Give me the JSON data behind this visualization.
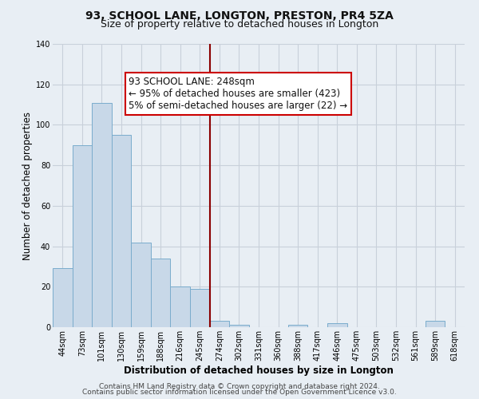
{
  "title": "93, SCHOOL LANE, LONGTON, PRESTON, PR4 5ZA",
  "subtitle": "Size of property relative to detached houses in Longton",
  "xlabel": "Distribution of detached houses by size in Longton",
  "ylabel": "Number of detached properties",
  "bin_labels": [
    "44sqm",
    "73sqm",
    "101sqm",
    "130sqm",
    "159sqm",
    "188sqm",
    "216sqm",
    "245sqm",
    "274sqm",
    "302sqm",
    "331sqm",
    "360sqm",
    "388sqm",
    "417sqm",
    "446sqm",
    "475sqm",
    "503sqm",
    "532sqm",
    "561sqm",
    "589sqm",
    "618sqm"
  ],
  "bar_heights": [
    29,
    90,
    111,
    95,
    42,
    34,
    20,
    19,
    3,
    1,
    0,
    0,
    1,
    0,
    2,
    0,
    0,
    0,
    0,
    3,
    0
  ],
  "bar_color": "#c8d8e8",
  "bar_edge_color": "#7aaccc",
  "subject_line_color": "#8b0000",
  "annotation_title": "93 SCHOOL LANE: 248sqm",
  "annotation_line1": "← 95% of detached houses are smaller (423)",
  "annotation_line2": "5% of semi-detached houses are larger (22) →",
  "annotation_box_color": "#ffffff",
  "annotation_border_color": "#cc0000",
  "ylim": [
    0,
    140
  ],
  "yticks": [
    0,
    20,
    40,
    60,
    80,
    100,
    120,
    140
  ],
  "footer_line1": "Contains HM Land Registry data © Crown copyright and database right 2024.",
  "footer_line2": "Contains public sector information licensed under the Open Government Licence v3.0.",
  "bg_color": "#e8eef4",
  "plot_bg_color": "#e8eef4",
  "grid_color": "#c8d0da",
  "title_fontsize": 10,
  "subtitle_fontsize": 9,
  "axis_label_fontsize": 8.5,
  "tick_fontsize": 7,
  "annotation_fontsize": 8.5,
  "footer_fontsize": 6.5
}
